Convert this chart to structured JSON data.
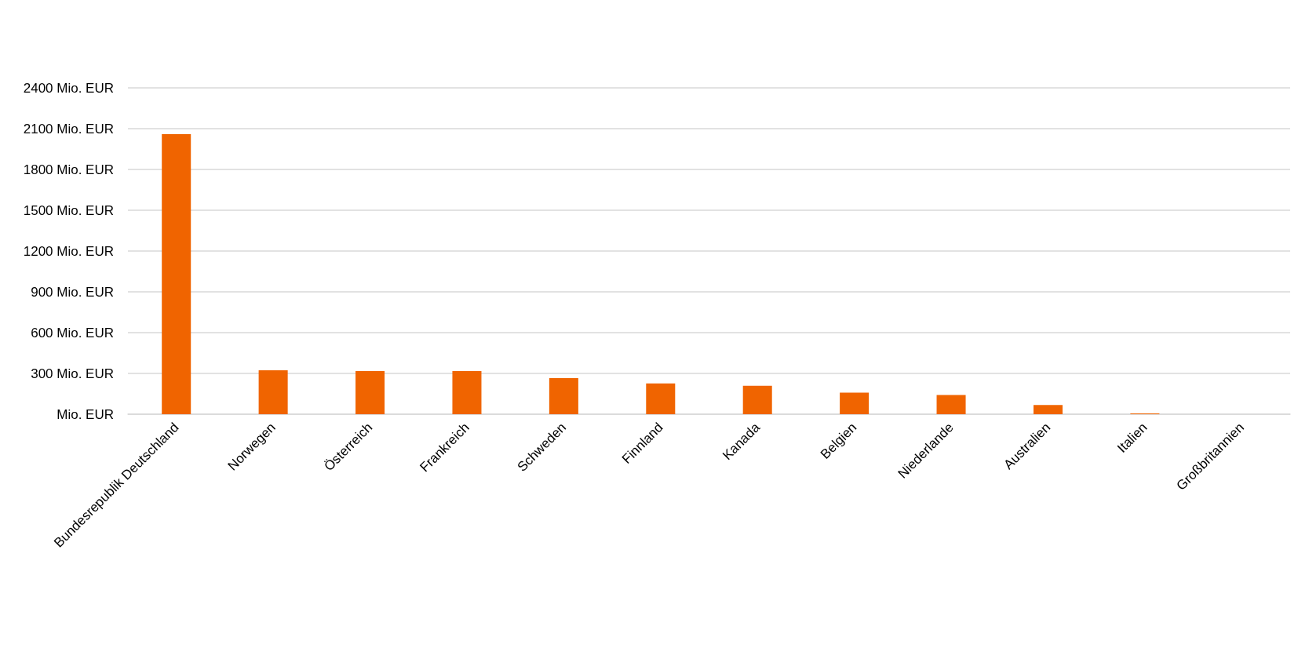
{
  "chart_data": {
    "type": "bar",
    "categories": [
      "Bundesrepublik Deutschland",
      "Norwegen",
      "Österreich",
      "Frankreich",
      "Schweden",
      "Finnland",
      "Kanada",
      "Belgien",
      "Niederlande",
      "Australien",
      "Italien",
      "Großbritannien"
    ],
    "values": [
      2060,
      323,
      317,
      317,
      266,
      226,
      209,
      158,
      141,
      68,
      6,
      0
    ],
    "color": "#f06400",
    "ylim": [
      0,
      2400
    ],
    "yticks": [
      {
        "value": 0,
        "label": "Mio. EUR"
      },
      {
        "value": 300,
        "label": "300 Mio. EUR"
      },
      {
        "value": 600,
        "label": "600 Mio. EUR"
      },
      {
        "value": 900,
        "label": "900 Mio. EUR"
      },
      {
        "value": 1200,
        "label": "1200 Mio. EUR"
      },
      {
        "value": 1500,
        "label": "1500 Mio. EUR"
      },
      {
        "value": 1800,
        "label": "1800 Mio. EUR"
      },
      {
        "value": 2100,
        "label": "2100 Mio. EUR"
      },
      {
        "value": 2400,
        "label": "2400 Mio. EUR"
      }
    ],
    "grid": "y"
  }
}
